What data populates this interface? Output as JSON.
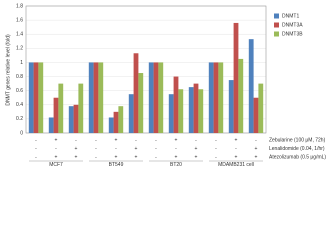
{
  "chart_data": {
    "type": "bar",
    "y_label": "DNMT genes relative level (fold)",
    "categories": [
      null,
      null,
      null,
      null,
      null,
      null,
      null,
      null,
      null,
      null,
      null,
      null
    ],
    "cell_lines": [
      "MCF7",
      "BT549",
      "BT20",
      "MDAMB231 cell"
    ],
    "treatments": [
      {
        "name": "Zebularine (100 μM, 72h)",
        "signs": [
          "-",
          "+",
          "-",
          "-",
          "+",
          "-",
          "-",
          "+",
          "-",
          "-",
          "+",
          "-"
        ]
      },
      {
        "name": "Lenalidomide (0.04, 1/hr)",
        "signs": [
          "-",
          "-",
          "+",
          "-",
          "-",
          "+",
          "-",
          "-",
          "+",
          "-",
          "-",
          "+"
        ]
      },
      {
        "name": "Atezolizumab (0.5 μg/mL)",
        "signs": [
          "-",
          "+",
          "+",
          "-",
          "+",
          "+",
          "-",
          "+",
          "+",
          "-",
          "+",
          "+"
        ]
      }
    ],
    "series": [
      {
        "name": "DNMT1",
        "color": "#4f81bd",
        "values": [
          1,
          0.22,
          0.38,
          1,
          0.22,
          0.55,
          1,
          0.55,
          0.65,
          1,
          0.75,
          1.33
        ]
      },
      {
        "name": "DNMT3A",
        "color": "#c0504d",
        "values": [
          1,
          0.5,
          0.4,
          1,
          0.3,
          1.13,
          1,
          0.8,
          0.7,
          1,
          1.56,
          0.5
        ]
      },
      {
        "name": "DNMT3B",
        "color": "#9bbb59",
        "values": [
          1,
          0.7,
          0.7,
          1,
          0.38,
          0.85,
          1,
          0.62,
          0.62,
          1,
          1.05,
          0.7
        ]
      }
    ],
    "ylim": [
      0,
      1.8
    ],
    "yticks": [
      0,
      0.2,
      0.4,
      0.6,
      0.8,
      1,
      1.2,
      1.4,
      1.6,
      1.8
    ],
    "grid": true,
    "legend": "upper-right"
  }
}
